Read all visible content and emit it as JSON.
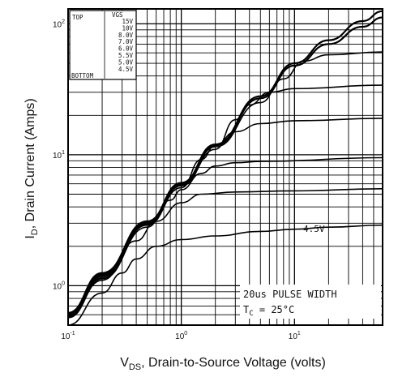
{
  "chart_data": {
    "type": "line",
    "xlabel": "V",
    "xlabel_sub": "DS",
    "xlabel_rest": ", Drain-to-Source Voltage (volts)",
    "ylabel": "I",
    "ylabel_sub": "D",
    "ylabel_rest": ", Drain Current (Amps)",
    "x_scale": "log",
    "y_scale": "log",
    "xlim": [
      0.1,
      60
    ],
    "ylim": [
      0.5,
      130
    ],
    "grid": true,
    "x_ticks": [
      {
        "value": 0.1,
        "mant": "10",
        "exp": "-1"
      },
      {
        "value": 1,
        "mant": "10",
        "exp": "0"
      },
      {
        "value": 10,
        "mant": "10",
        "exp": "1"
      }
    ],
    "y_ticks": [
      {
        "value": 1,
        "mant": "10",
        "exp": "0"
      },
      {
        "value": 10,
        "mant": "10",
        "exp": "1"
      },
      {
        "value": 100,
        "mant": "10",
        "exp": "2"
      }
    ],
    "legend": {
      "position": "top-left",
      "header_left": "TOP",
      "header_right": "VGS",
      "entries": [
        "15V",
        "10V",
        "8.0V",
        "7.0V",
        "6.0V",
        "5.5V",
        "5.0V",
        "4.5V"
      ],
      "bottom_label": "BOTTOM"
    },
    "curve_label": "4.5V",
    "annotation_line1": "20us PULSE WIDTH",
    "annotation_line2_prefix": "T",
    "annotation_line2_sub": "C",
    "annotation_line2_rest": " = 25°C",
    "series": [
      {
        "x": [
          0.1,
          0.2,
          0.5,
          1,
          2,
          5,
          10,
          20,
          40,
          60
        ],
        "y": [
          0.62,
          1.25,
          3.1,
          6.1,
          12,
          28,
          50,
          75,
          105,
          125
        ]
      },
      {
        "x": [
          0.1,
          0.2,
          0.5,
          1,
          2,
          5,
          10,
          20,
          40,
          60
        ],
        "y": [
          0.61,
          1.23,
          3.05,
          6.0,
          11.8,
          27,
          48,
          70,
          95,
          112
        ]
      },
      {
        "x": [
          0.1,
          0.2,
          0.5,
          1,
          2,
          5,
          8,
          12,
          20,
          60
        ],
        "y": [
          0.6,
          1.2,
          3.0,
          5.9,
          11.5,
          25,
          38,
          52,
          58,
          61
        ]
      },
      {
        "x": [
          0.1,
          0.2,
          0.5,
          1,
          2,
          3,
          4,
          6,
          10,
          60
        ],
        "y": [
          0.59,
          1.18,
          2.95,
          5.8,
          11,
          18.5,
          24,
          30,
          32,
          34
        ]
      },
      {
        "x": [
          0.1,
          0.2,
          0.5,
          1,
          1.5,
          2,
          3,
          5,
          10,
          60
        ],
        "y": [
          0.58,
          1.15,
          2.9,
          5.6,
          9.2,
          11.8,
          15,
          17.3,
          18.2,
          19
        ]
      },
      {
        "x": [
          0.1,
          0.2,
          0.5,
          0.8,
          1,
          1.5,
          2,
          3,
          5,
          60
        ],
        "y": [
          0.58,
          1.13,
          2.8,
          4.5,
          5.4,
          7.2,
          8.2,
          8.7,
          8.9,
          9.5
        ]
      },
      {
        "x": [
          0.1,
          0.2,
          0.4,
          0.6,
          1,
          1.5,
          3,
          10,
          60
        ],
        "y": [
          0.57,
          1.1,
          2.2,
          3.1,
          4.3,
          5.0,
          5.2,
          5.3,
          5.5
        ]
      },
      {
        "x": [
          0.1,
          0.2,
          0.3,
          0.4,
          0.6,
          1,
          2,
          5,
          10,
          20,
          60
        ],
        "y": [
          0.5,
          0.88,
          1.25,
          1.6,
          2.0,
          2.25,
          2.4,
          2.6,
          2.7,
          2.8,
          2.9
        ]
      }
    ]
  }
}
